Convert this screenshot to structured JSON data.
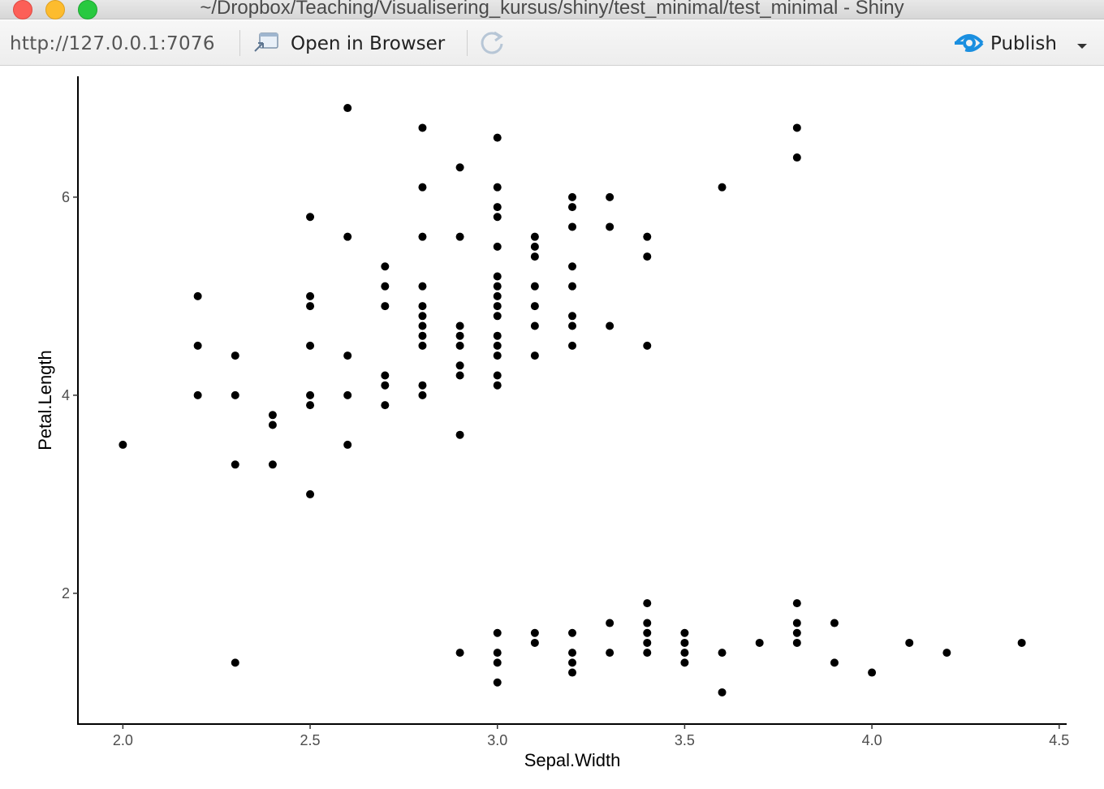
{
  "window": {
    "title": "~/Dropbox/Teaching/Visualisering_kursus/shiny/test_minimal/test_minimal - Shiny"
  },
  "toolbar": {
    "url": "http://127.0.0.1:7076",
    "open_in_browser_label": "Open in Browser",
    "publish_label": "Publish",
    "icons": {
      "open": "open-in-browser-icon",
      "refresh": "refresh-icon",
      "publish": "publish-icon",
      "caret": "chevron-down-icon"
    },
    "accent_color": "#1a8fe0"
  },
  "chart_data": {
    "type": "scatter",
    "title": "",
    "xlabel": "Sepal.Width",
    "ylabel": "Petal.Length",
    "xlim": [
      1.88,
      4.52
    ],
    "ylim": [
      0.68,
      7.22
    ],
    "x_ticks": [
      2.0,
      2.5,
      3.0,
      3.5,
      4.0,
      4.5
    ],
    "x_tick_labels": [
      "2.0",
      "2.5",
      "3.0",
      "3.5",
      "4.0",
      "4.5"
    ],
    "y_ticks": [
      2,
      4,
      6
    ],
    "y_tick_labels": [
      "2",
      "4",
      "6"
    ],
    "grid": false,
    "point_color": "#000000",
    "points": [
      [
        2.0,
        3.5
      ],
      [
        2.2,
        5.0
      ],
      [
        2.2,
        4.5
      ],
      [
        2.2,
        4.0
      ],
      [
        2.3,
        4.4
      ],
      [
        2.3,
        4.0
      ],
      [
        2.3,
        3.3
      ],
      [
        2.3,
        1.3
      ],
      [
        2.4,
        3.8
      ],
      [
        2.4,
        3.7
      ],
      [
        2.4,
        3.3
      ],
      [
        2.5,
        5.8
      ],
      [
        2.5,
        5.0
      ],
      [
        2.5,
        4.9
      ],
      [
        2.5,
        4.5
      ],
      [
        2.5,
        4.0
      ],
      [
        2.5,
        3.9
      ],
      [
        2.5,
        3.0
      ],
      [
        2.6,
        6.9
      ],
      [
        2.6,
        5.6
      ],
      [
        2.6,
        4.4
      ],
      [
        2.6,
        4.0
      ],
      [
        2.6,
        3.5
      ],
      [
        2.7,
        5.3
      ],
      [
        2.7,
        5.1
      ],
      [
        2.7,
        4.9
      ],
      [
        2.7,
        4.2
      ],
      [
        2.7,
        4.1
      ],
      [
        2.7,
        3.9
      ],
      [
        2.8,
        6.7
      ],
      [
        2.8,
        6.1
      ],
      [
        2.8,
        5.6
      ],
      [
        2.8,
        5.1
      ],
      [
        2.8,
        4.9
      ],
      [
        2.8,
        4.8
      ],
      [
        2.8,
        4.7
      ],
      [
        2.8,
        4.6
      ],
      [
        2.8,
        4.5
      ],
      [
        2.8,
        4.1
      ],
      [
        2.8,
        4.0
      ],
      [
        2.9,
        6.3
      ],
      [
        2.9,
        5.6
      ],
      [
        2.9,
        4.7
      ],
      [
        2.9,
        4.6
      ],
      [
        2.9,
        4.5
      ],
      [
        2.9,
        4.3
      ],
      [
        2.9,
        4.2
      ],
      [
        2.9,
        3.6
      ],
      [
        2.9,
        1.4
      ],
      [
        3.0,
        6.6
      ],
      [
        3.0,
        6.1
      ],
      [
        3.0,
        5.9
      ],
      [
        3.0,
        5.8
      ],
      [
        3.0,
        5.5
      ],
      [
        3.0,
        5.2
      ],
      [
        3.0,
        5.1
      ],
      [
        3.0,
        5.0
      ],
      [
        3.0,
        4.9
      ],
      [
        3.0,
        4.8
      ],
      [
        3.0,
        4.6
      ],
      [
        3.0,
        4.5
      ],
      [
        3.0,
        4.4
      ],
      [
        3.0,
        4.2
      ],
      [
        3.0,
        4.1
      ],
      [
        3.0,
        1.6
      ],
      [
        3.0,
        1.4
      ],
      [
        3.0,
        1.3
      ],
      [
        3.0,
        1.1
      ],
      [
        3.1,
        5.6
      ],
      [
        3.1,
        5.5
      ],
      [
        3.1,
        5.4
      ],
      [
        3.1,
        5.1
      ],
      [
        3.1,
        4.9
      ],
      [
        3.1,
        4.7
      ],
      [
        3.1,
        4.4
      ],
      [
        3.1,
        1.6
      ],
      [
        3.1,
        1.5
      ],
      [
        3.2,
        6.0
      ],
      [
        3.2,
        5.9
      ],
      [
        3.2,
        5.7
      ],
      [
        3.2,
        5.3
      ],
      [
        3.2,
        5.1
      ],
      [
        3.2,
        4.8
      ],
      [
        3.2,
        4.7
      ],
      [
        3.2,
        4.5
      ],
      [
        3.2,
        1.6
      ],
      [
        3.2,
        1.4
      ],
      [
        3.2,
        1.3
      ],
      [
        3.2,
        1.2
      ],
      [
        3.3,
        6.0
      ],
      [
        3.3,
        5.7
      ],
      [
        3.3,
        4.7
      ],
      [
        3.3,
        1.7
      ],
      [
        3.3,
        1.4
      ],
      [
        3.4,
        5.6
      ],
      [
        3.4,
        5.4
      ],
      [
        3.4,
        4.5
      ],
      [
        3.4,
        1.9
      ],
      [
        3.4,
        1.7
      ],
      [
        3.4,
        1.6
      ],
      [
        3.4,
        1.5
      ],
      [
        3.4,
        1.4
      ],
      [
        3.5,
        1.6
      ],
      [
        3.5,
        1.5
      ],
      [
        3.5,
        1.4
      ],
      [
        3.5,
        1.3
      ],
      [
        3.6,
        6.1
      ],
      [
        3.6,
        1.4
      ],
      [
        3.6,
        1.0
      ],
      [
        3.7,
        1.5
      ],
      [
        3.8,
        6.7
      ],
      [
        3.8,
        6.4
      ],
      [
        3.8,
        1.9
      ],
      [
        3.8,
        1.7
      ],
      [
        3.8,
        1.6
      ],
      [
        3.8,
        1.5
      ],
      [
        3.9,
        1.7
      ],
      [
        3.9,
        1.3
      ],
      [
        4.0,
        1.2
      ],
      [
        4.1,
        1.5
      ],
      [
        4.2,
        1.4
      ],
      [
        4.4,
        1.5
      ]
    ]
  }
}
